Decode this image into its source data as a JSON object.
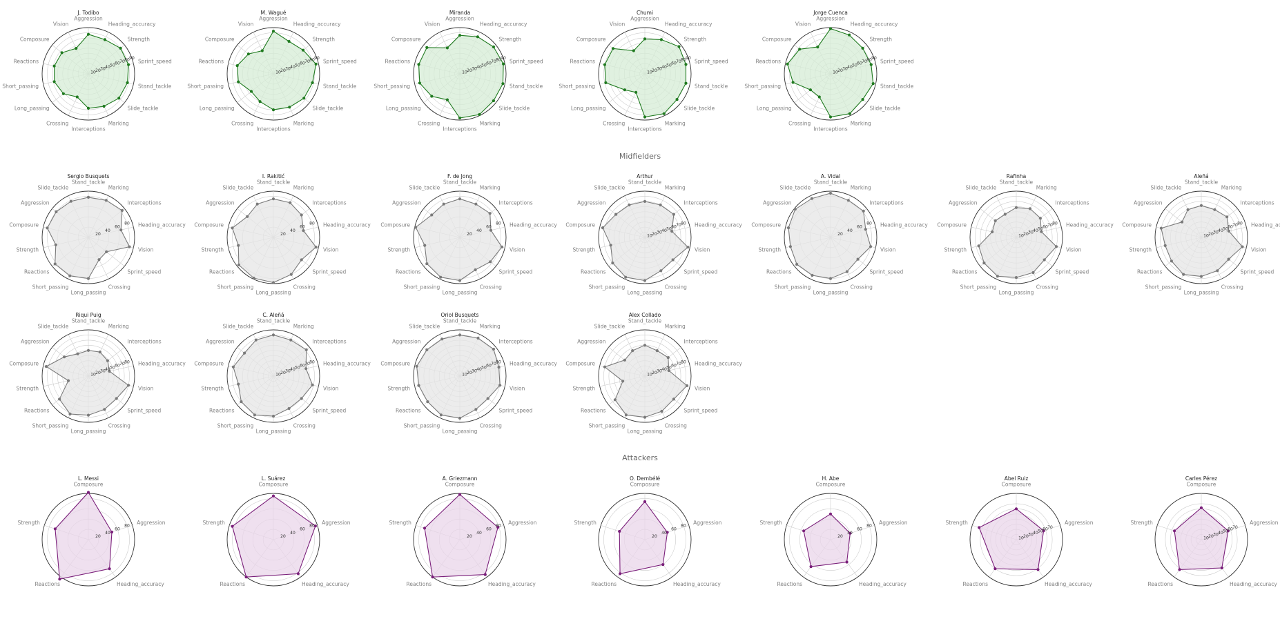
{
  "sections": [
    {
      "key": "defenders",
      "title": "",
      "color": "#1f7a1f",
      "fill": "#d6ecd6"
    },
    {
      "key": "midfielders",
      "title": "Midfielders",
      "color": "#7a7a7a",
      "fill": "#e6e6e6"
    },
    {
      "key": "attackers",
      "title": "Attackers",
      "color": "#7a1f7a",
      "fill": "#ead6ea"
    }
  ],
  "chart_data": [
    {
      "type": "radar",
      "group": "defenders",
      "rlim": [
        0,
        90
      ],
      "ticks": [
        10,
        20,
        30,
        40,
        50,
        60,
        70,
        80,
        90
      ],
      "axes": [
        "Aggression",
        "Heading_accuracy",
        "Strength",
        "Sprint_speed",
        "Stand_tackle",
        "Slide_tackle",
        "Marking",
        "Interceptions",
        "Crossing",
        "Long_passing",
        "Short_passing",
        "Reactions",
        "Composure",
        "Vision"
      ],
      "players": [
        {
          "name": "J. Todibo",
          "values": [
            77,
            74,
            80,
            80,
            78,
            76,
            70,
            67,
            50,
            62,
            68,
            68,
            66,
            55
          ]
        },
        {
          "name": "M. Wagué",
          "values": [
            83,
            70,
            74,
            85,
            78,
            76,
            72,
            70,
            60,
            55,
            70,
            72,
            62,
            50
          ]
        },
        {
          "name": "Miranda",
          "values": [
            75,
            80,
            84,
            87,
            86,
            84,
            88,
            86,
            56,
            70,
            80,
            82,
            82,
            56
          ]
        },
        {
          "name": "Chumi",
          "values": [
            68,
            74,
            85,
            82,
            82,
            80,
            86,
            84,
            40,
            50,
            78,
            80,
            79,
            50
          ]
        },
        {
          "name": "Jorge Cuenca",
          "values": [
            88,
            84,
            80,
            81,
            85,
            80,
            86,
            84,
            50,
            50,
            75,
            86,
            77,
            58
          ]
        }
      ]
    },
    {
      "type": "radar",
      "group": "midfielders",
      "rlim": [
        0,
        90
      ],
      "axes": [
        "Stand_tackle",
        "Marking",
        "Interceptions",
        "Heading_accuracy",
        "Vision",
        "Sprint_speed",
        "Crossing",
        "Long_passing",
        "Short_passing",
        "Reactions",
        "Strength",
        "Composure",
        "Aggression",
        "Slide_tackle"
      ],
      "players": [
        {
          "name": "Sergio Busquets",
          "ticks": [
            20,
            40,
            60,
            80
          ],
          "values": [
            78,
            80,
            84,
            65,
            82,
            45,
            48,
            80,
            83,
            83,
            65,
            82,
            80,
            78
          ]
        },
        {
          "name": "I. Rakitić",
          "ticks": [
            20,
            40,
            60,
            80
          ],
          "values": [
            75,
            75,
            70,
            60,
            85,
            70,
            80,
            88,
            88,
            86,
            70,
            82,
            65,
            72
          ]
        },
        {
          "name": "F. de Jong",
          "ticks": [
            20,
            40,
            60,
            80
          ],
          "values": [
            75,
            72,
            75,
            62,
            84,
            76,
            70,
            84,
            86,
            82,
            70,
            88,
            70,
            72
          ]
        },
        {
          "name": "Arthur",
          "ticks": [
            10,
            20,
            30,
            40,
            50,
            60,
            70,
            80
          ],
          "values": [
            70,
            70,
            72,
            54,
            86,
            70,
            72,
            84,
            86,
            80,
            68,
            84,
            72,
            70
          ]
        },
        {
          "name": "A. Vidal",
          "ticks": [
            20,
            40,
            60,
            80
          ],
          "values": [
            86,
            80,
            82,
            70,
            80,
            68,
            74,
            80,
            82,
            84,
            80,
            84,
            88,
            84
          ]
        },
        {
          "name": "Rafinha",
          "ticks": [
            10,
            20,
            30,
            40,
            50,
            60,
            70,
            80
          ],
          "values": [
            58,
            62,
            60,
            50,
            80,
            70,
            76,
            78,
            84,
            80,
            75,
            48,
            52,
            50
          ]
        },
        {
          "name": "Aleñá",
          "ticks": [
            10,
            20,
            30,
            40,
            50,
            60,
            70,
            80
          ],
          "values": [
            62,
            60,
            64,
            55,
            82,
            68,
            72,
            76,
            80,
            74,
            72,
            80,
            48,
            60
          ]
        },
        {
          "name": "Riqui Puig",
          "ticks": [
            10,
            20,
            30,
            40,
            50,
            60,
            70,
            80
          ],
          "values": [
            50,
            52,
            48,
            42,
            80,
            70,
            72,
            76,
            82,
            72,
            40,
            84,
            60,
            48
          ]
        },
        {
          "name": "C. Aleñá",
          "ticks": [
            10,
            20,
            30,
            40,
            50,
            60,
            70,
            80
          ],
          "values": [
            80,
            78,
            82,
            65,
            78,
            70,
            70,
            78,
            84,
            80,
            70,
            80,
            72,
            78
          ]
        },
        {
          "name": "Oriol Busquets",
          "ticks": [
            10,
            20,
            30,
            40,
            50,
            60,
            70,
            80
          ],
          "values": [
            80,
            82,
            84,
            78,
            80,
            70,
            72,
            82,
            84,
            80,
            82,
            86,
            82,
            80
          ]
        },
        {
          "name": "Alex Collado",
          "ticks": [
            10,
            20,
            30,
            40,
            50,
            60,
            70,
            80
          ],
          "values": [
            60,
            55,
            58,
            48,
            84,
            72,
            76,
            80,
            84,
            74,
            44,
            80,
            50,
            55
          ]
        }
      ]
    },
    {
      "type": "radar",
      "group": "attackers",
      "rlim": [
        0,
        90
      ],
      "axes": [
        "Composure",
        "Aggression",
        "Heading_accuracy",
        "Reactions",
        "Strength"
      ],
      "players": [
        {
          "name": "L. Messi",
          "ticks": [
            20,
            40,
            60,
            80
          ],
          "values": [
            92,
            48,
            70,
            95,
            68
          ]
        },
        {
          "name": "L. Suárez",
          "ticks": [
            20,
            40,
            60,
            80
          ],
          "values": [
            85,
            86,
            82,
            90,
            84
          ]
        },
        {
          "name": "A. Griezmann",
          "ticks": [
            20,
            40,
            60,
            80
          ],
          "values": [
            88,
            78,
            84,
            90,
            72
          ]
        },
        {
          "name": "O. Dembélé",
          "ticks": [
            20,
            40,
            60,
            80
          ],
          "values": [
            74,
            46,
            60,
            82,
            52
          ]
        },
        {
          "name": "H. Abe",
          "ticks": [
            20,
            40,
            60,
            80
          ],
          "values": [
            50,
            40,
            54,
            65,
            55
          ]
        },
        {
          "name": "Abel Ruiz",
          "ticks": [
            10,
            20,
            30,
            40,
            50,
            60,
            70
          ],
          "values": [
            60,
            56,
            72,
            70,
            76
          ]
        },
        {
          "name": "Carles Pérez",
          "ticks": [
            10,
            20,
            30,
            40,
            50,
            60,
            70
          ],
          "values": [
            62,
            55,
            68,
            72,
            55
          ]
        }
      ]
    }
  ]
}
